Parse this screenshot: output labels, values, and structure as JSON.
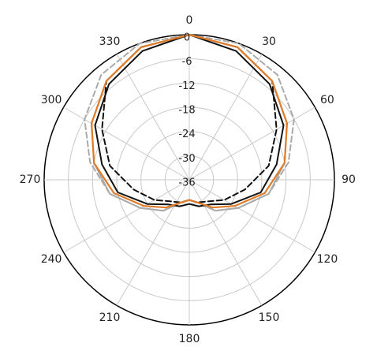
{
  "chart_data": {
    "type": "line",
    "subtype": "polar",
    "title": "",
    "angular_axis": {
      "zero_location": "top",
      "direction": "clockwise",
      "ticks": [
        "0",
        "30",
        "60",
        "90",
        "120",
        "150",
        "180",
        "210",
        "240",
        "270",
        "300",
        "330"
      ]
    },
    "radial_axis": {
      "range": [
        -36,
        0
      ],
      "ticks": [
        "0",
        "-6",
        "-12",
        "-18",
        "-24",
        "-30",
        "-36"
      ]
    },
    "grid": true,
    "legend": "none",
    "series": [
      {
        "color": "#aaaaaa",
        "style": "solid",
        "points": [
          [
            0,
            0
          ],
          [
            20,
            -1
          ],
          [
            40,
            -4
          ],
          [
            60,
            -8
          ],
          [
            80,
            -12
          ],
          [
            100,
            -16
          ],
          [
            120,
            -22
          ],
          [
            140,
            -26
          ],
          [
            160,
            -30
          ],
          [
            180,
            -31
          ],
          [
            200,
            -30
          ],
          [
            220,
            -26
          ],
          [
            240,
            -22
          ],
          [
            260,
            -16
          ],
          [
            280,
            -12
          ],
          [
            300,
            -8
          ],
          [
            320,
            -4
          ],
          [
            340,
            -1
          ],
          [
            360,
            0
          ]
        ]
      },
      {
        "color": "#aaaaaa",
        "style": "dashed",
        "points": [
          [
            0,
            0
          ],
          [
            20,
            0
          ],
          [
            40,
            -2
          ],
          [
            60,
            -6
          ],
          [
            80,
            -11
          ],
          [
            100,
            -16
          ],
          [
            120,
            -22
          ],
          [
            140,
            -26
          ],
          [
            160,
            -30
          ],
          [
            180,
            -31
          ],
          [
            200,
            -30
          ],
          [
            220,
            -26
          ],
          [
            240,
            -22
          ],
          [
            260,
            -16
          ],
          [
            280,
            -11
          ],
          [
            300,
            -6
          ],
          [
            320,
            -2
          ],
          [
            340,
            0
          ],
          [
            360,
            0
          ]
        ]
      },
      {
        "color": "#111111",
        "style": "solid",
        "points": [
          [
            0,
            0
          ],
          [
            20,
            -2
          ],
          [
            40,
            -5
          ],
          [
            60,
            -9
          ],
          [
            80,
            -14
          ],
          [
            100,
            -18
          ],
          [
            120,
            -24
          ],
          [
            140,
            -28
          ],
          [
            160,
            -29
          ],
          [
            180,
            -30
          ],
          [
            200,
            -29
          ],
          [
            220,
            -28
          ],
          [
            240,
            -24
          ],
          [
            260,
            -18
          ],
          [
            280,
            -14
          ],
          [
            300,
            -9
          ],
          [
            320,
            -5
          ],
          [
            340,
            -2
          ],
          [
            360,
            0
          ]
        ]
      },
      {
        "color": "#111111",
        "style": "dashed",
        "points": [
          [
            0,
            0
          ],
          [
            20,
            -1
          ],
          [
            40,
            -4
          ],
          [
            60,
            -11
          ],
          [
            80,
            -16
          ],
          [
            100,
            -22
          ],
          [
            120,
            -26
          ],
          [
            140,
            -29
          ],
          [
            160,
            -30
          ],
          [
            180,
            -31
          ],
          [
            200,
            -30
          ],
          [
            220,
            -29
          ],
          [
            240,
            -26
          ],
          [
            260,
            -22
          ],
          [
            280,
            -16
          ],
          [
            300,
            -11
          ],
          [
            320,
            -4
          ],
          [
            340,
            -1
          ],
          [
            360,
            0
          ]
        ]
      },
      {
        "color": "#e07b28",
        "style": "solid",
        "points": [
          [
            0,
            0
          ],
          [
            20,
            -1
          ],
          [
            40,
            -4
          ],
          [
            60,
            -8
          ],
          [
            80,
            -12
          ],
          [
            100,
            -17
          ],
          [
            120,
            -23
          ],
          [
            140,
            -27
          ],
          [
            160,
            -30
          ],
          [
            180,
            -31
          ],
          [
            200,
            -30
          ],
          [
            220,
            -27
          ],
          [
            240,
            -23
          ],
          [
            260,
            -17
          ],
          [
            280,
            -12
          ],
          [
            300,
            -8
          ],
          [
            320,
            -4
          ],
          [
            340,
            -1
          ],
          [
            360,
            0
          ]
        ]
      }
    ]
  }
}
